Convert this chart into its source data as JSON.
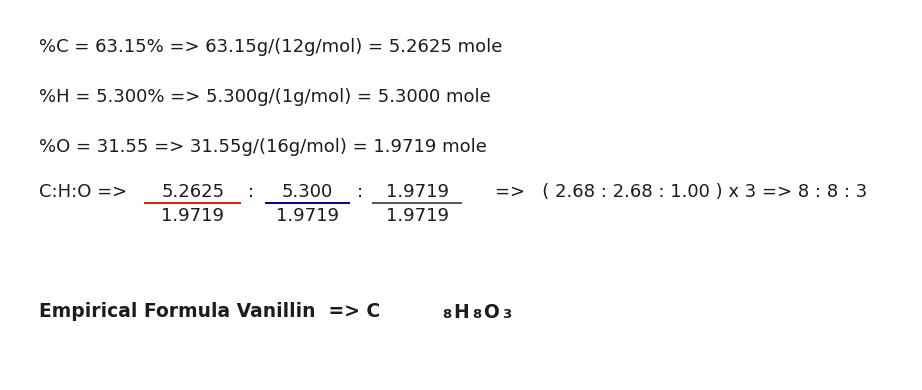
{
  "bg_color": "#ffffff",
  "line1": "%C = 63.15% => 63.15g/(12g/mol) = 5.2625 mole",
  "line2": "%H = 5.300% => 5.300g/(1g/mol) = 5.3000 mole",
  "line3": "%O = 31.55 => 31.55g/(16g/mol) = 1.9719 mole",
  "ratio_label": "C:H:O =>",
  "num1": "5.2625",
  "num2": "5.300",
  "num3": "1.9719",
  "den": "1.9719",
  "result_text": "=>   ( 2.68 : 2.68 : 1.00 ) x 3 => 8 : 8 : 3",
  "empirical_text": "Empirical Formula Vanillin  => C",
  "empirical_sub1": "8",
  "empirical_h": "H",
  "empirical_sub2": "8",
  "empirical_o": "O",
  "empirical_sub3": "3",
  "text_color": "#1c1c1c",
  "bold_color": "#1a1a6e",
  "underline_color1": "#cc2200",
  "underline_color2": "#00008b",
  "underline_color3": "#555555",
  "font_size": 13.0,
  "sub_font_size": 9.5,
  "emp_font_size": 13.5
}
